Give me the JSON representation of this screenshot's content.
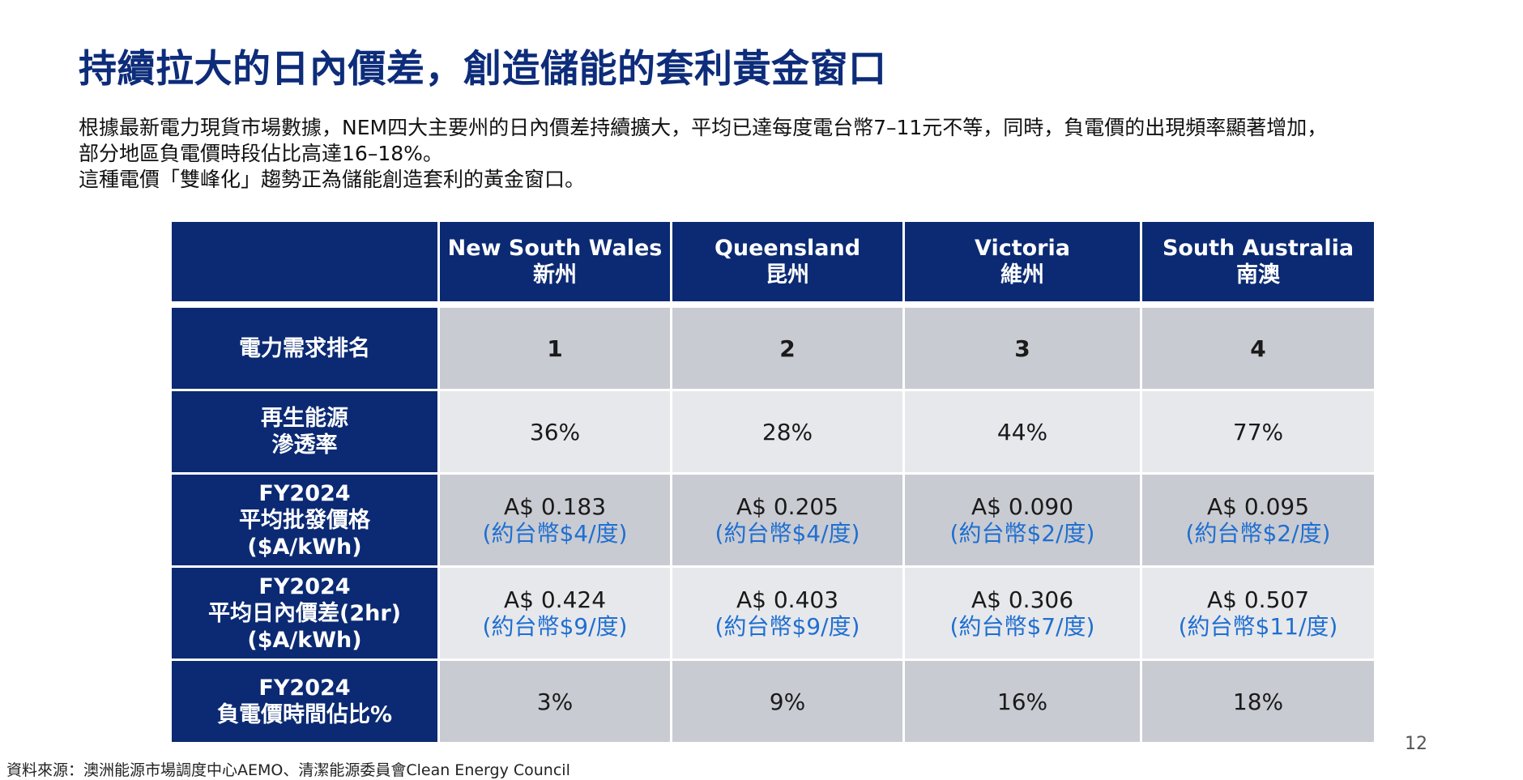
{
  "title": "持續拉大的日內價差，創造儲能的套利黃金窗口",
  "intro": {
    "line1": "根據最新電力現貨市場數據，NEM四大主要州的日內價差持續擴大，平均已達每度電台幣7–11元不等，同時，負電價的出現頻率顯著增加，",
    "line2": "部分地區負電價時段佔比高達16–18%。",
    "line3": "這種電價「雙峰化」趨勢正為儲能創造套利的黃金窗口。"
  },
  "table": {
    "columns": [
      {
        "en": "New South Wales",
        "zh": "新州"
      },
      {
        "en": "Queensland",
        "zh": "昆州"
      },
      {
        "en": "Victoria",
        "zh": "維州"
      },
      {
        "en": "South Australia",
        "zh": "南澳"
      }
    ],
    "rows": {
      "demand_rank": {
        "label": "電力需求排名",
        "values": [
          "1",
          "2",
          "3",
          "4"
        ]
      },
      "renewable": {
        "label_line1": "再生能源",
        "label_line2": "滲透率",
        "values": [
          "36%",
          "28%",
          "44%",
          "77%"
        ]
      },
      "wholesale": {
        "label_line1": "FY2024",
        "label_line2": "平均批發價格",
        "label_line3": "($A/kWh)",
        "values": [
          {
            "aud": "A$ 0.183",
            "twd": "(約台幣$4/度)"
          },
          {
            "aud": "A$ 0.205",
            "twd": "(約台幣$4/度)"
          },
          {
            "aud": "A$ 0.090",
            "twd": "(約台幣$2/度)"
          },
          {
            "aud": "A$ 0.095",
            "twd": "(約台幣$2/度)"
          }
        ]
      },
      "spread": {
        "label_line1": "FY2024",
        "label_line2": "平均日內價差(2hr)",
        "label_line3": "($A/kWh)",
        "values": [
          {
            "aud": "A$ 0.424",
            "twd": "(約台幣$9/度)"
          },
          {
            "aud": "A$ 0.403",
            "twd": "(約台幣$9/度)"
          },
          {
            "aud": "A$ 0.306",
            "twd": "(約台幣$7/度)"
          },
          {
            "aud": "A$ 0.507",
            "twd": "(約台幣$11/度)"
          }
        ]
      },
      "negative": {
        "label_line1": "FY2024",
        "label_line2": "負電價時間佔比%",
        "values": [
          "3%",
          "9%",
          "16%",
          "18%"
        ]
      }
    }
  },
  "page_number": "12",
  "source": "資料來源：澳洲能源市場調度中心AEMO、清潔能源委員會Clean Energy Council",
  "colors": {
    "title": "#0d2c7a",
    "header_bg": "#0b2a73",
    "row_dark": "#c9cbd2",
    "row_light": "#e7e8ec",
    "twd_text": "#1f6fd0"
  }
}
